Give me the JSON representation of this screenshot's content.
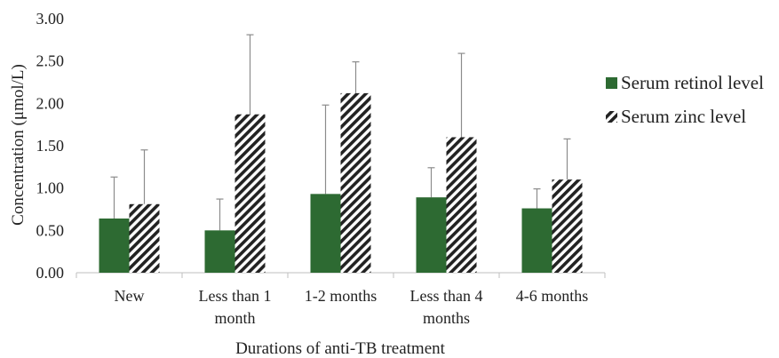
{
  "chart_data": {
    "type": "bar",
    "title": "",
    "xlabel": "Durations of anti-TB treatment",
    "ylabel": "Concentration (μmol/L)",
    "ylim": [
      0,
      3
    ],
    "yticks": [
      "0.00",
      "0.50",
      "1.00",
      "1.50",
      "2.00",
      "2.50",
      "3.00"
    ],
    "grid": false,
    "legend_position": "right",
    "categories": [
      [
        "New"
      ],
      [
        "Less than 1",
        "month"
      ],
      [
        "1-2 months"
      ],
      [
        "Less than 4",
        "months"
      ],
      [
        "4-6 months"
      ]
    ],
    "series": [
      {
        "name": "Serum retinol level",
        "style": "solid",
        "color": "#2d6a32",
        "values": [
          0.64,
          0.5,
          0.93,
          0.89,
          0.76
        ],
        "error_upper": [
          1.13,
          0.87,
          1.98,
          1.24,
          0.99
        ]
      },
      {
        "name": "Serum zinc level",
        "style": "diagonal-hatch",
        "color": "#222222",
        "values": [
          0.81,
          1.87,
          2.12,
          1.6,
          1.1
        ],
        "error_upper": [
          1.45,
          2.81,
          2.49,
          2.59,
          1.58
        ]
      }
    ]
  }
}
